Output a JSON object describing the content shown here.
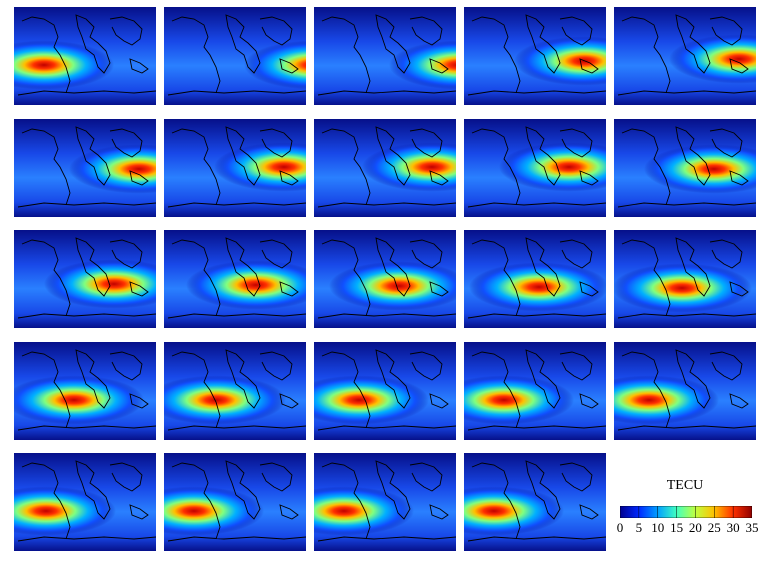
{
  "panels": [
    {
      "hotspot": "eastern-pacific / western-pacific"
    },
    {
      "hotspot": "eastern-pacific / western-pacific"
    },
    {
      "hotspot": "eastern-pacific / western-pacific"
    },
    {
      "hotspot": "western-pacific"
    },
    {
      "hotspot": "western-pacific"
    },
    {
      "hotspot": "western-pacific / indonesia"
    },
    {
      "hotspot": "western-pacific / indonesia"
    },
    {
      "hotspot": "indonesia"
    },
    {
      "hotspot": "indonesia / indian-ocean"
    },
    {
      "hotspot": "indonesia / indian-ocean"
    },
    {
      "hotspot": "indian-ocean"
    },
    {
      "hotspot": "indian-ocean / africa"
    },
    {
      "hotspot": "africa"
    },
    {
      "hotspot": "africa"
    },
    {
      "hotspot": "africa / atlantic"
    },
    {
      "hotspot": "atlantic"
    },
    {
      "hotspot": "atlantic"
    },
    {
      "hotspot": "atlantic / south-america"
    },
    {
      "hotspot": "south-america"
    },
    {
      "hotspot": "south-america"
    },
    {
      "hotspot": "eastern-pacific"
    },
    {
      "hotspot": "eastern-pacific"
    },
    {
      "hotspot": "eastern-pacific"
    },
    {
      "hotspot": "eastern-pacific"
    }
  ],
  "legend": {
    "title": "TECU",
    "ticks": [
      "0",
      "5",
      "10",
      "15",
      "20",
      "25",
      "30",
      "35"
    ],
    "colors": [
      "#00008f",
      "#0028ff",
      "#00a0ff",
      "#40ffc0",
      "#c0ff40",
      "#ffc000",
      "#ff3000",
      "#8f0000"
    ]
  }
}
